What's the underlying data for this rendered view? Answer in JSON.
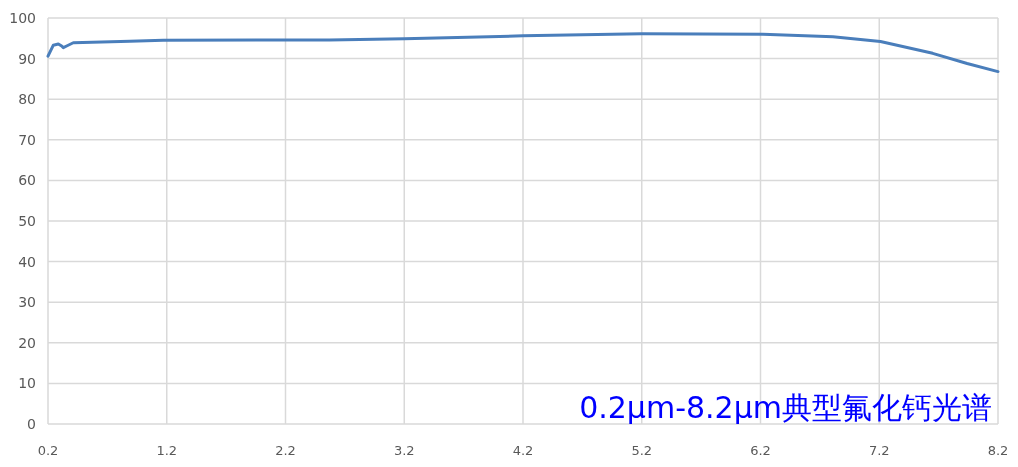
{
  "chart_data": {
    "type": "line",
    "annotations": [
      "0.2μm-8.2μm典型氟化钙光谱"
    ],
    "x": [
      0.2,
      0.245,
      0.287,
      0.315,
      0.329,
      0.357,
      0.413,
      0.89,
      1.17,
      2.2,
      2.57,
      3.2,
      4.2,
      5.2,
      6.22,
      6.81,
      7.21,
      7.65,
      7.94,
      8.2
    ],
    "series": [
      {
        "color": "#4a7ebb",
        "values": [
          90.6,
          93.3,
          93.6,
          93.1,
          92.7,
          93.1,
          93.9,
          94.3,
          94.5,
          94.6,
          94.6,
          94.9,
          95.6,
          96.1,
          96.0,
          95.4,
          94.2,
          91.3,
          88.8,
          86.8
        ]
      }
    ],
    "xlim": [
      0.2,
      8.2
    ],
    "xticks": [
      0.2,
      1.2,
      2.2,
      3.2,
      4.2,
      5.2,
      6.2,
      7.2,
      8.2
    ],
    "ylim": [
      0,
      100
    ],
    "yticks": [
      0,
      10,
      20,
      30,
      40,
      50,
      60,
      70,
      80,
      90,
      100
    ],
    "grid": true,
    "marker": "none",
    "line_style": "solid"
  }
}
